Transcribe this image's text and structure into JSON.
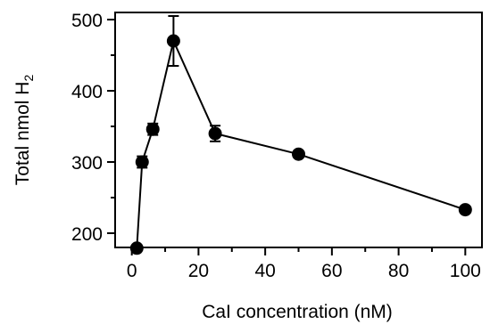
{
  "chart_data": {
    "type": "scatter",
    "title": "",
    "xlabel": "CaI concentration (nM)",
    "ylabel_main": "Total nmol H",
    "ylabel_sub": "2",
    "xlim": [
      -5,
      105
    ],
    "ylim": [
      180,
      510
    ],
    "x_ticks": [
      0,
      20,
      40,
      60,
      80,
      100
    ],
    "x_minor_ticks": [
      10,
      30,
      50,
      70,
      90
    ],
    "y_ticks": [
      200,
      300,
      400,
      500
    ],
    "y_minor_ticks": [
      250,
      350,
      450
    ],
    "grid": false,
    "legend": "none",
    "colors": {
      "marker": "#000000",
      "line": "#000000"
    },
    "series": [
      {
        "points": [
          {
            "x": 1.5,
            "y": 179,
            "err": 0
          },
          {
            "x": 3.1,
            "y": 300,
            "err": 8
          },
          {
            "x": 6.3,
            "y": 346,
            "err": 8
          },
          {
            "x": 12.5,
            "y": 470,
            "err": 35
          },
          {
            "x": 25,
            "y": 340,
            "err": 11
          },
          {
            "x": 50,
            "y": 311,
            "err": 0
          },
          {
            "x": 100,
            "y": 233,
            "err": 0
          }
        ]
      }
    ]
  }
}
